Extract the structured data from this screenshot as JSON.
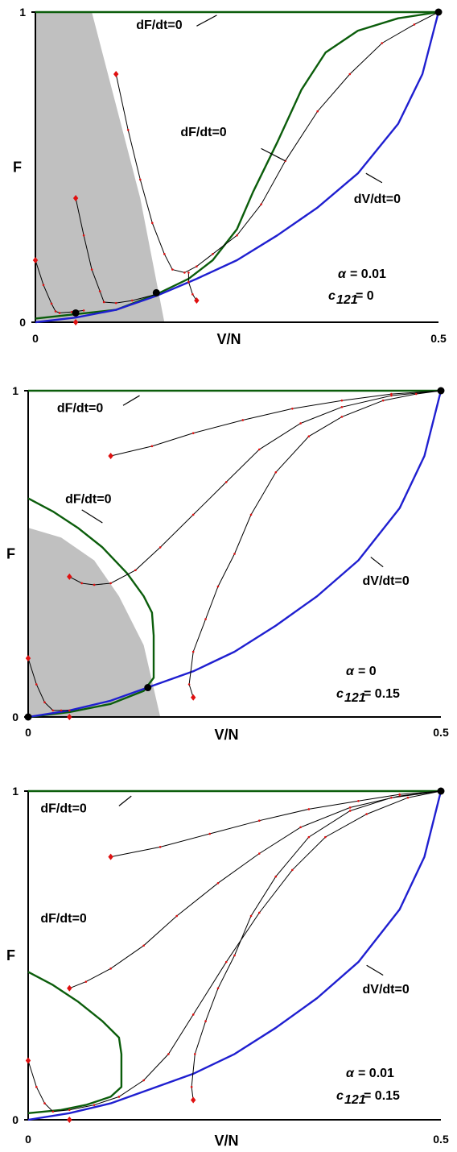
{
  "chart_data": [
    {
      "type": "line",
      "panel": "top",
      "xlabel": "V/N",
      "ylabel": "F",
      "xlim": [
        0,
        0.5
      ],
      "ylim": [
        0,
        1
      ],
      "x_ticks": [
        "0",
        "0.5"
      ],
      "y_ticks": [
        "0",
        "1"
      ],
      "params": {
        "alpha_label": "= 0.01",
        "c121_label": "= 0"
      },
      "colors": {
        "dF_nullcline": "#0b5d0b",
        "dV_nullcline": "#1f1fd0",
        "trajectory": "#000000",
        "trajectory_marker": "#e01010",
        "shade": "#c0c0c0",
        "equilibrium": "#000000"
      },
      "shaded_region": [
        [
          0,
          1
        ],
        [
          0.07,
          1
        ],
        [
          0.1,
          0.7
        ],
        [
          0.13,
          0.4
        ],
        [
          0.145,
          0.2
        ],
        [
          0.16,
          0
        ]
      ],
      "annotations": [
        {
          "text": "dF/dt=0",
          "x": 0.125,
          "y": 0.945,
          "lx1": 0.2,
          "ly1": 0.955,
          "lx2": 0.225,
          "ly2": 0.99
        },
        {
          "text": "dF/dt=0",
          "x": 0.18,
          "y": 0.6,
          "lx1": 0.28,
          "ly1": 0.56,
          "lx2": 0.31,
          "ly2": 0.52
        },
        {
          "text": "dV/dt=0",
          "x": 0.395,
          "y": 0.385,
          "lx1": 0.43,
          "ly1": 0.45,
          "lx2": 0.41,
          "ly2": 0.48
        }
      ],
      "series": [
        {
          "role": "dF_nullcline",
          "points": [
            [
              0,
              1
            ],
            [
              0.5,
              1
            ]
          ]
        },
        {
          "role": "dF_nullcline",
          "points": [
            [
              0,
              0.012
            ],
            [
              0.1,
              0.04
            ],
            [
              0.15,
              0.09
            ],
            [
              0.19,
              0.14
            ],
            [
              0.22,
              0.2
            ],
            [
              0.25,
              0.3
            ],
            [
              0.27,
              0.42
            ],
            [
              0.3,
              0.58
            ],
            [
              0.33,
              0.75
            ],
            [
              0.36,
              0.87
            ],
            [
              0.4,
              0.94
            ],
            [
              0.45,
              0.98
            ],
            [
              0.5,
              1
            ]
          ]
        },
        {
          "role": "dV_nullcline",
          "points": [
            [
              0,
              0
            ],
            [
              0.05,
              0.015
            ],
            [
              0.1,
              0.04
            ],
            [
              0.15,
              0.085
            ],
            [
              0.2,
              0.14
            ],
            [
              0.25,
              0.2
            ],
            [
              0.3,
              0.28
            ],
            [
              0.35,
              0.37
            ],
            [
              0.4,
              0.48
            ],
            [
              0.45,
              0.64
            ],
            [
              0.48,
              0.8
            ],
            [
              0.5,
              1
            ]
          ]
        }
      ],
      "trajectories": [
        [
          [
            0.0,
            0.2
          ],
          [
            0.01,
            0.12
          ],
          [
            0.02,
            0.06
          ],
          [
            0.025,
            0.035
          ],
          [
            0.03,
            0.03
          ],
          [
            0.045,
            0.033
          ],
          [
            0.06,
            0.038
          ]
        ],
        [
          [
            0.05,
            0.4
          ],
          [
            0.06,
            0.28
          ],
          [
            0.07,
            0.17
          ],
          [
            0.08,
            0.1
          ],
          [
            0.085,
            0.065
          ],
          [
            0.1,
            0.062
          ],
          [
            0.12,
            0.07
          ],
          [
            0.15,
            0.09
          ]
        ],
        [
          [
            0.1,
            0.8
          ],
          [
            0.115,
            0.62
          ],
          [
            0.13,
            0.46
          ],
          [
            0.145,
            0.32
          ],
          [
            0.16,
            0.22
          ],
          [
            0.17,
            0.17
          ],
          [
            0.185,
            0.16
          ],
          [
            0.2,
            0.18
          ],
          [
            0.22,
            0.22
          ],
          [
            0.25,
            0.28
          ],
          [
            0.28,
            0.38
          ],
          [
            0.31,
            0.52
          ],
          [
            0.35,
            0.68
          ],
          [
            0.39,
            0.8
          ],
          [
            0.43,
            0.9
          ],
          [
            0.47,
            0.96
          ],
          [
            0.5,
            1
          ]
        ],
        [
          [
            0.2,
            0.07
          ],
          [
            0.195,
            0.09
          ],
          [
            0.19,
            0.13
          ],
          [
            0.19,
            0.16
          ]
        ],
        [
          [
            0.05,
            0
          ],
          [
            0.05,
            0.005
          ]
        ]
      ],
      "equilibria": [
        [
          0.05,
          0.03
        ],
        [
          0.15,
          0.095
        ],
        [
          0.5,
          1
        ]
      ]
    },
    {
      "type": "line",
      "panel": "middle",
      "xlabel": "V/N",
      "ylabel": "F",
      "xlim": [
        0,
        0.5
      ],
      "ylim": [
        0,
        1
      ],
      "x_ticks": [
        "0",
        "0.5"
      ],
      "y_ticks": [
        "0",
        "1"
      ],
      "params": {
        "alpha_label": "= 0",
        "c121_label": "= 0.15"
      },
      "colors": {
        "dF_nullcline": "#0b5d0b",
        "dV_nullcline": "#1f1fd0",
        "trajectory": "#000000",
        "trajectory_marker": "#e01010",
        "shade": "#c0c0c0",
        "equilibrium": "#000000"
      },
      "shaded_region": [
        [
          0,
          0.58
        ],
        [
          0.04,
          0.55
        ],
        [
          0.08,
          0.48
        ],
        [
          0.11,
          0.37
        ],
        [
          0.14,
          0.22
        ],
        [
          0.16,
          0
        ]
      ],
      "annotations": [
        {
          "text": "dF/dt=0",
          "x": 0.035,
          "y": 0.935,
          "lx1": 0.115,
          "ly1": 0.955,
          "lx2": 0.135,
          "ly2": 0.985
        },
        {
          "text": "dF/dt=0",
          "x": 0.045,
          "y": 0.655,
          "lx1": 0.065,
          "ly1": 0.635,
          "lx2": 0.09,
          "ly2": 0.595
        },
        {
          "text": "dV/dt=0",
          "x": 0.405,
          "y": 0.405,
          "lx1": 0.43,
          "ly1": 0.46,
          "lx2": 0.415,
          "ly2": 0.49
        }
      ],
      "series": [
        {
          "role": "dF_nullcline",
          "points": [
            [
              0,
              1
            ],
            [
              0.5,
              1
            ]
          ]
        },
        {
          "role": "dF_nullcline",
          "points": [
            [
              0,
              0.67
            ],
            [
              0.03,
              0.63
            ],
            [
              0.06,
              0.58
            ],
            [
              0.09,
              0.52
            ],
            [
              0.12,
              0.44
            ],
            [
              0.14,
              0.37
            ],
            [
              0.15,
              0.32
            ],
            [
              0.152,
              0.25
            ],
            [
              0.152,
              0.12
            ],
            [
              0.14,
              0.08
            ],
            [
              0.1,
              0.04
            ],
            [
              0.05,
              0.015
            ],
            [
              0,
              0
            ]
          ]
        },
        {
          "role": "dV_nullcline",
          "points": [
            [
              0,
              0
            ],
            [
              0.05,
              0.02
            ],
            [
              0.1,
              0.05
            ],
            [
              0.15,
              0.095
            ],
            [
              0.2,
              0.14
            ],
            [
              0.25,
              0.2
            ],
            [
              0.3,
              0.28
            ],
            [
              0.35,
              0.37
            ],
            [
              0.4,
              0.48
            ],
            [
              0.45,
              0.64
            ],
            [
              0.48,
              0.8
            ],
            [
              0.5,
              1
            ]
          ]
        }
      ],
      "trajectories": [
        [
          [
            0.0,
            0.18
          ],
          [
            0.01,
            0.1
          ],
          [
            0.02,
            0.045
          ],
          [
            0.03,
            0.02
          ],
          [
            0.04,
            0.02
          ],
          [
            0.05,
            0.02
          ]
        ],
        [
          [
            0.05,
            0.43
          ],
          [
            0.065,
            0.41
          ],
          [
            0.08,
            0.405
          ],
          [
            0.1,
            0.41
          ],
          [
            0.13,
            0.45
          ],
          [
            0.16,
            0.52
          ],
          [
            0.2,
            0.62
          ],
          [
            0.24,
            0.72
          ],
          [
            0.28,
            0.82
          ],
          [
            0.33,
            0.9
          ],
          [
            0.38,
            0.95
          ],
          [
            0.44,
            0.985
          ],
          [
            0.5,
            1
          ]
        ],
        [
          [
            0.1,
            0.8
          ],
          [
            0.15,
            0.83
          ],
          [
            0.2,
            0.87
          ],
          [
            0.26,
            0.91
          ],
          [
            0.32,
            0.945
          ],
          [
            0.38,
            0.97
          ],
          [
            0.44,
            0.99
          ],
          [
            0.5,
            1
          ]
        ],
        [
          [
            0.2,
            0.06
          ],
          [
            0.195,
            0.1
          ],
          [
            0.2,
            0.2
          ],
          [
            0.215,
            0.3
          ],
          [
            0.23,
            0.4
          ],
          [
            0.25,
            0.5
          ],
          [
            0.27,
            0.62
          ],
          [
            0.3,
            0.75
          ],
          [
            0.34,
            0.86
          ],
          [
            0.38,
            0.92
          ],
          [
            0.43,
            0.97
          ],
          [
            0.47,
            0.99
          ],
          [
            0.5,
            1
          ]
        ],
        [
          [
            0.05,
            0
          ],
          [
            0.05,
            0.004
          ]
        ]
      ],
      "equilibria": [
        [
          0,
          0
        ],
        [
          0.145,
          0.09
        ],
        [
          0.5,
          1
        ]
      ]
    },
    {
      "type": "line",
      "panel": "bottom",
      "xlabel": "V/N",
      "ylabel": "F",
      "xlim": [
        0,
        0.5
      ],
      "ylim": [
        0,
        1
      ],
      "x_ticks": [
        "0",
        "0.5"
      ],
      "y_ticks": [
        "0",
        "1"
      ],
      "params": {
        "alpha_label": "= 0.01",
        "c121_label": "= 0.15"
      },
      "colors": {
        "dF_nullcline": "#0b5d0b",
        "dV_nullcline": "#1f1fd0",
        "trajectory": "#000000",
        "trajectory_marker": "#e01010",
        "shade": "#c0c0c0",
        "equilibrium": "#000000"
      },
      "shaded_region": [],
      "annotations": [
        {
          "text": "dF/dt=0",
          "x": 0.015,
          "y": 0.935,
          "lx1": 0.11,
          "ly1": 0.955,
          "lx2": 0.125,
          "ly2": 0.985
        },
        {
          "text": "dF/dt=0",
          "x": 0.015,
          "y": 0.6,
          "lx1": 0,
          "ly1": 0,
          "lx2": 0,
          "ly2": 0
        },
        {
          "text": "dV/dt=0",
          "x": 0.405,
          "y": 0.385,
          "lx1": 0.43,
          "ly1": 0.44,
          "lx2": 0.41,
          "ly2": 0.47
        }
      ],
      "series": [
        {
          "role": "dF_nullcline",
          "points": [
            [
              0,
              1
            ],
            [
              0.5,
              1
            ]
          ]
        },
        {
          "role": "dF_nullcline",
          "points": [
            [
              0,
              0.45
            ],
            [
              0.03,
              0.41
            ],
            [
              0.06,
              0.36
            ],
            [
              0.09,
              0.3
            ],
            [
              0.11,
              0.25
            ],
            [
              0.113,
              0.2
            ],
            [
              0.113,
              0.1
            ],
            [
              0.1,
              0.07
            ],
            [
              0.07,
              0.045
            ],
            [
              0.04,
              0.03
            ],
            [
              0,
              0.02
            ]
          ]
        },
        {
          "role": "dV_nullcline",
          "points": [
            [
              0,
              0
            ],
            [
              0.05,
              0.02
            ],
            [
              0.1,
              0.05
            ],
            [
              0.15,
              0.095
            ],
            [
              0.2,
              0.14
            ],
            [
              0.25,
              0.2
            ],
            [
              0.3,
              0.28
            ],
            [
              0.35,
              0.37
            ],
            [
              0.4,
              0.48
            ],
            [
              0.45,
              0.64
            ],
            [
              0.48,
              0.8
            ],
            [
              0.5,
              1
            ]
          ]
        }
      ],
      "trajectories": [
        [
          [
            0.0,
            0.18
          ],
          [
            0.01,
            0.1
          ],
          [
            0.02,
            0.05
          ],
          [
            0.03,
            0.025
          ],
          [
            0.05,
            0.03
          ],
          [
            0.08,
            0.045
          ],
          [
            0.11,
            0.07
          ],
          [
            0.14,
            0.12
          ],
          [
            0.17,
            0.2
          ],
          [
            0.2,
            0.32
          ],
          [
            0.24,
            0.48
          ],
          [
            0.28,
            0.63
          ],
          [
            0.32,
            0.76
          ],
          [
            0.36,
            0.86
          ],
          [
            0.41,
            0.93
          ],
          [
            0.46,
            0.98
          ],
          [
            0.5,
            1
          ]
        ],
        [
          [
            0.05,
            0.4
          ],
          [
            0.07,
            0.42
          ],
          [
            0.1,
            0.46
          ],
          [
            0.14,
            0.53
          ],
          [
            0.18,
            0.62
          ],
          [
            0.23,
            0.72
          ],
          [
            0.28,
            0.81
          ],
          [
            0.33,
            0.89
          ],
          [
            0.39,
            0.95
          ],
          [
            0.45,
            0.985
          ],
          [
            0.5,
            1
          ]
        ],
        [
          [
            0.1,
            0.8
          ],
          [
            0.16,
            0.83
          ],
          [
            0.22,
            0.87
          ],
          [
            0.28,
            0.91
          ],
          [
            0.34,
            0.945
          ],
          [
            0.4,
            0.97
          ],
          [
            0.45,
            0.99
          ],
          [
            0.5,
            1
          ]
        ],
        [
          [
            0.2,
            0.06
          ],
          [
            0.198,
            0.1
          ],
          [
            0.202,
            0.2
          ],
          [
            0.215,
            0.3
          ],
          [
            0.23,
            0.4
          ],
          [
            0.25,
            0.5
          ],
          [
            0.27,
            0.62
          ],
          [
            0.3,
            0.74
          ],
          [
            0.34,
            0.86
          ],
          [
            0.39,
            0.94
          ],
          [
            0.44,
            0.98
          ],
          [
            0.5,
            1
          ]
        ],
        [
          [
            0.05,
            0
          ],
          [
            0.05,
            0.004
          ]
        ]
      ],
      "equilibria": [
        [
          0.5,
          1
        ]
      ]
    }
  ]
}
